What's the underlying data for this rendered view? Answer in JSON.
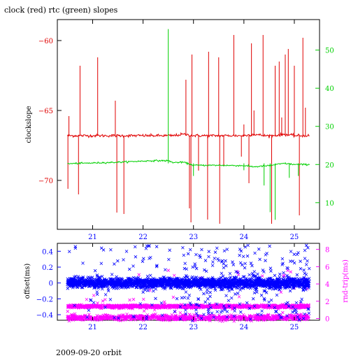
{
  "title": "clock (red) rtc (green) slopes",
  "footer": "2009-09-20 orbit",
  "colors": {
    "red": "#e00000",
    "green": "#00d000",
    "blue": "#0000ff",
    "magenta": "#ff00ff",
    "black": "#000000"
  },
  "chart_data": [
    {
      "type": "line",
      "title": "clock (red) rtc (green) slopes",
      "ylabel": "clockslope",
      "x_ticks": [
        "21",
        "22",
        "23",
        "24",
        "25"
      ],
      "xlim": [
        20.3,
        25.5
      ],
      "ylim_left": [
        -73.5,
        -58.5
      ],
      "ylim_right": [
        3,
        58
      ],
      "left_ticks": [
        -60,
        -65,
        -70
      ],
      "right_ticks": [
        50,
        40,
        30,
        20,
        10
      ],
      "series": [
        {
          "axis": "left",
          "color": "red",
          "x": [
            20.5,
            20.6,
            20.8,
            21.0,
            21.2,
            21.4,
            21.6,
            21.8,
            22.0,
            22.2,
            22.4,
            22.6,
            22.8,
            23.0,
            23.2,
            23.4,
            23.6,
            23.8,
            24.0,
            24.2,
            24.4,
            24.6,
            24.8,
            25.0,
            25.2,
            25.3
          ],
          "y": [
            -66.8,
            -66.8,
            -66.8,
            -66.8,
            -66.8,
            -66.8,
            -66.8,
            -66.8,
            -66.8,
            -66.8,
            -66.8,
            -66.8,
            -66.7,
            -66.8,
            -66.8,
            -66.8,
            -66.8,
            -66.8,
            -66.8,
            -66.7,
            -66.8,
            -66.8,
            -66.7,
            -66.8,
            -66.8,
            -66.8
          ],
          "spikes": [
            {
              "x": 20.51,
              "y": -70.6
            },
            {
              "x": 20.53,
              "y": -65.4
            },
            {
              "x": 20.72,
              "y": -71.0
            },
            {
              "x": 20.75,
              "y": -61.8
            },
            {
              "x": 21.1,
              "y": -61.2
            },
            {
              "x": 21.45,
              "y": -64.3
            },
            {
              "x": 21.48,
              "y": -72.3
            },
            {
              "x": 21.62,
              "y": -72.4
            },
            {
              "x": 22.85,
              "y": -62.8
            },
            {
              "x": 22.92,
              "y": -72.0
            },
            {
              "x": 22.95,
              "y": -73.0
            },
            {
              "x": 22.97,
              "y": -61.0
            },
            {
              "x": 23.1,
              "y": -69.3
            },
            {
              "x": 23.28,
              "y": -72.8
            },
            {
              "x": 23.3,
              "y": -60.8
            },
            {
              "x": 23.5,
              "y": -61.2
            },
            {
              "x": 23.52,
              "y": -73.1
            },
            {
              "x": 23.6,
              "y": -69.0
            },
            {
              "x": 23.8,
              "y": -59.6
            },
            {
              "x": 23.95,
              "y": -68.3
            },
            {
              "x": 24.0,
              "y": -66.0
            },
            {
              "x": 24.1,
              "y": -70.2
            },
            {
              "x": 24.15,
              "y": -60.2
            },
            {
              "x": 24.2,
              "y": -65.0
            },
            {
              "x": 24.38,
              "y": -59.6
            },
            {
              "x": 24.55,
              "y": -73.1
            },
            {
              "x": 24.62,
              "y": -61.8
            },
            {
              "x": 24.7,
              "y": -61.5
            },
            {
              "x": 24.75,
              "y": -65.5
            },
            {
              "x": 24.82,
              "y": -61.0
            },
            {
              "x": 24.88,
              "y": -60.6
            },
            {
              "x": 25.0,
              "y": -61.8
            },
            {
              "x": 25.1,
              "y": -72.5
            },
            {
              "x": 25.17,
              "y": -59.8
            },
            {
              "x": 25.22,
              "y": -64.8
            }
          ]
        },
        {
          "axis": "right",
          "color": "green",
          "x": [
            20.5,
            20.7,
            21.0,
            21.5,
            22.0,
            22.2,
            22.4,
            22.5,
            22.6,
            22.8,
            23.0,
            23.5,
            24.0,
            24.2,
            24.5,
            24.8,
            25.0,
            25.2,
            25.3
          ],
          "y": [
            20.2,
            20.3,
            20.4,
            20.6,
            20.9,
            21.0,
            21.0,
            21.0,
            20.5,
            20.6,
            19.8,
            19.8,
            19.7,
            19.4,
            19.7,
            20.3,
            20.0,
            20.0,
            20.0
          ],
          "spikes": [
            {
              "x": 22.5,
              "y": 55.5
            },
            {
              "x": 23.0,
              "y": 17.0
            },
            {
              "x": 24.0,
              "y": 18.5
            },
            {
              "x": 24.4,
              "y": 14.5
            },
            {
              "x": 24.52,
              "y": 7.5
            },
            {
              "x": 24.62,
              "y": 5.5
            },
            {
              "x": 24.9,
              "y": 16.5
            },
            {
              "x": 25.08,
              "y": 17.0
            }
          ]
        }
      ]
    },
    {
      "type": "scatter",
      "ylabel_left": "offset(ms)",
      "ylabel_right": "rnd-trip(ms)",
      "x_ticks": [
        "21",
        "22",
        "23",
        "24",
        "25"
      ],
      "xlim": [
        20.3,
        25.5
      ],
      "ylim_left": [
        -0.47,
        0.5
      ],
      "ylim_right": [
        -0.2,
        8.7
      ],
      "left_ticks": [
        "0.4",
        "0.2",
        "0",
        "-0.2",
        "-0.4"
      ],
      "right_ticks": [
        "8",
        "6",
        "4",
        "2",
        "0"
      ],
      "series": [
        {
          "axis": "left",
          "color": "blue",
          "x_range": [
            20.5,
            25.3
          ],
          "y_core": 0.0,
          "y_core_spread": 0.03,
          "n_points": 2200,
          "n_outliers": 320
        },
        {
          "axis": "right",
          "color": "magenta",
          "x_range": [
            20.5,
            25.3
          ],
          "y_core": 1.4,
          "y_core_spread": 0.08,
          "n_points": 1400
        },
        {
          "axis": "right",
          "color": "magenta",
          "x_range": [
            20.5,
            25.3
          ],
          "y_core": 0.1,
          "y_core_spread": 0.15,
          "n_points": 900
        }
      ]
    }
  ]
}
